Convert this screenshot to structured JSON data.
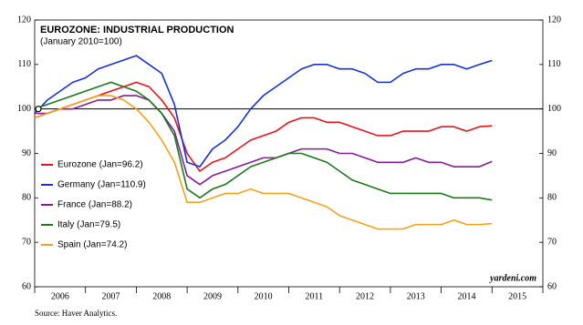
{
  "chart_data": {
    "type": "line",
    "title": "EUROZONE: INDUSTRIAL PRODUCTION",
    "subtitle": "(January 2010=100)",
    "watermark": "yardeni.com",
    "source": "Source: Haver Analytics.",
    "x": [
      2006,
      2006.25,
      2006.5,
      2006.75,
      2007,
      2007.25,
      2007.5,
      2007.75,
      2008,
      2008.25,
      2008.5,
      2008.75,
      2009,
      2009.25,
      2009.5,
      2009.75,
      2010,
      2010.25,
      2010.5,
      2010.75,
      2011,
      2011.25,
      2011.5,
      2011.75,
      2012,
      2012.25,
      2012.5,
      2012.75,
      2013,
      2013.25,
      2013.5,
      2013.75,
      2014,
      2014.25,
      2014.5,
      2014.75,
      2015
    ],
    "series": [
      {
        "name": "Eurozone (Jan=96.2)",
        "color": "#e8141b",
        "values": [
          98,
          99,
          100,
          101,
          102,
          103,
          104,
          105,
          106,
          105,
          102,
          98,
          90,
          86,
          88,
          89,
          91,
          93,
          94,
          95,
          97,
          98,
          98,
          97,
          97,
          96,
          95,
          94,
          94,
          95,
          95,
          95,
          96,
          96,
          95,
          96,
          96.2
        ]
      },
      {
        "name": "Germany (Jan=110.9)",
        "color": "#1530e0",
        "values": [
          99,
          102,
          104,
          106,
          107,
          109,
          110,
          111,
          112,
          110,
          108,
          101,
          88,
          87,
          91,
          93,
          96,
          100,
          103,
          105,
          107,
          109,
          110,
          110,
          109,
          109,
          108,
          106,
          106,
          108,
          109,
          109,
          110,
          110,
          109,
          110,
          110.9
        ]
      },
      {
        "name": "France (Jan=88.2)",
        "color": "#8a1a9b",
        "values": [
          99,
          99,
          100,
          100,
          101,
          102,
          102,
          103,
          103,
          102,
          99,
          95,
          85,
          83,
          85,
          86,
          87,
          88,
          89,
          89,
          90,
          91,
          91,
          91,
          90,
          90,
          89,
          88,
          88,
          88,
          89,
          88,
          88,
          87,
          87,
          87,
          88.2
        ]
      },
      {
        "name": "Italy (Jan=79.5)",
        "color": "#1a7a1a",
        "values": [
          100,
          101,
          102,
          103,
          104,
          105,
          106,
          105,
          104,
          102,
          99,
          94,
          82,
          80,
          82,
          83,
          85,
          87,
          88,
          89,
          90,
          90,
          89,
          88,
          86,
          84,
          83,
          82,
          81,
          81,
          81,
          81,
          81,
          80,
          80,
          80,
          79.5
        ]
      },
      {
        "name": "Spain (Jan=74.2)",
        "color": "#f5a21a",
        "values": [
          98,
          99,
          100,
          101,
          102,
          103,
          103,
          102,
          100,
          97,
          93,
          88,
          79,
          79,
          80,
          81,
          81,
          82,
          81,
          81,
          81,
          80,
          79,
          78,
          76,
          75,
          74,
          73,
          73,
          73,
          74,
          74,
          74,
          75,
          74,
          74,
          74.2
        ]
      }
    ],
    "xlim": [
      2006,
      2016
    ],
    "xticks": [
      2006,
      2007,
      2008,
      2009,
      2010,
      2011,
      2012,
      2013,
      2014,
      2015,
      2016
    ],
    "xtick_labels": [
      "2006",
      "2007",
      "2008",
      "2009",
      "2010",
      "2011",
      "2012",
      "2013",
      "2014",
      "2015"
    ],
    "ylim": [
      60,
      120
    ],
    "yticks": [
      60,
      70,
      80,
      90,
      100,
      110,
      120
    ],
    "reference_line": 100,
    "grid": false,
    "legend": "lower-left"
  }
}
